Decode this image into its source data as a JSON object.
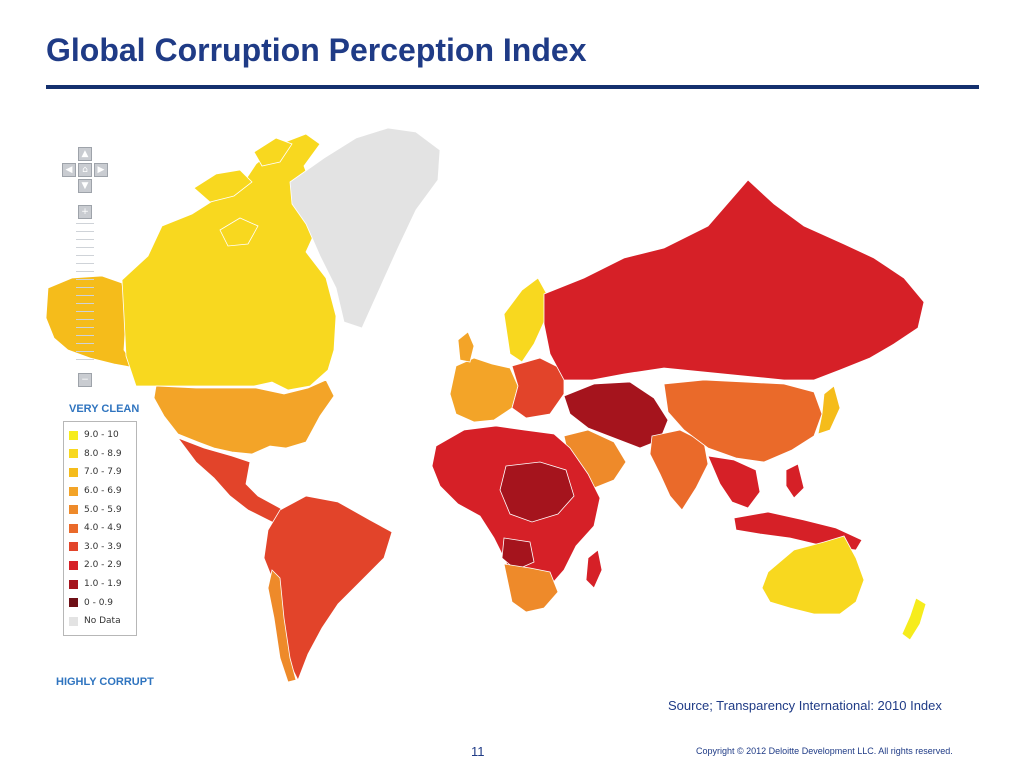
{
  "slide": {
    "title": "Global Corruption Perception Index",
    "source": "Source; Transparency International:  2010 Index",
    "page_number": "11",
    "copyright": "Copyright © 2012 Deloitte Development LLC. All rights reserved.",
    "title_color": "#1f3b86",
    "rule_color": "#14306e"
  },
  "map": {
    "controls": {
      "pan_up": "▲",
      "pan_left": "◀",
      "home": "⌂",
      "pan_right": "▶",
      "pan_down": "▼",
      "zoom_in": "+",
      "zoom_out": "−",
      "icons": [
        "pan-up-icon",
        "pan-left-icon",
        "home-icon",
        "pan-right-icon",
        "pan-down-icon",
        "zoom-in-icon",
        "zoom-out-icon"
      ]
    },
    "legend": {
      "top_label": "VERY CLEAN",
      "bottom_label": "HIGHLY CORRUPT",
      "items": [
        {
          "label": "9.0 - 10",
          "color": "#f6ec1c"
        },
        {
          "label": "8.0 - 8.9",
          "color": "#f8d81f"
        },
        {
          "label": "7.0 - 7.9",
          "color": "#f5bc1b"
        },
        {
          "label": "6.0 - 6.9",
          "color": "#f3a428"
        },
        {
          "label": "5.0 - 5.9",
          "color": "#ee8a2a"
        },
        {
          "label": "4.0 - 4.9",
          "color": "#ea6a2a"
        },
        {
          "label": "3.0 - 3.9",
          "color": "#e2442a"
        },
        {
          "label": "2.0 - 2.9",
          "color": "#d62027"
        },
        {
          "label": "1.0 - 1.9",
          "color": "#a5141d"
        },
        {
          "label": "0 - 0.9",
          "color": "#6e0f16"
        },
        {
          "label": "No Data",
          "color": "#e3e3e3"
        }
      ]
    },
    "regions": [
      {
        "id": "alaska",
        "color": "#f5bc1b"
      },
      {
        "id": "canada",
        "color": "#f8d81f"
      },
      {
        "id": "greenland",
        "color": "#e3e3e3"
      },
      {
        "id": "usa",
        "color": "#f3a428"
      },
      {
        "id": "mexico-central-america",
        "color": "#e2442a"
      },
      {
        "id": "south-america",
        "color": "#e2442a"
      },
      {
        "id": "chile",
        "color": "#ee8a2a"
      },
      {
        "id": "scandinavia",
        "color": "#f8d81f"
      },
      {
        "id": "western-europe",
        "color": "#f3a428"
      },
      {
        "id": "eastern-europe",
        "color": "#e2442a"
      },
      {
        "id": "russia",
        "color": "#d62027"
      },
      {
        "id": "middle-east",
        "color": "#a5141d"
      },
      {
        "id": "arabia",
        "color": "#ee8a2a"
      },
      {
        "id": "africa",
        "color": "#d62027"
      },
      {
        "id": "central-africa",
        "color": "#a5141d"
      },
      {
        "id": "southern-africa",
        "color": "#ee8a2a"
      },
      {
        "id": "india",
        "color": "#ea6a2a"
      },
      {
        "id": "china",
        "color": "#ea6a2a"
      },
      {
        "id": "southeast-asia",
        "color": "#d62027"
      },
      {
        "id": "indonesia",
        "color": "#d62027"
      },
      {
        "id": "japan",
        "color": "#f5bc1b"
      },
      {
        "id": "australia",
        "color": "#f8d81f"
      },
      {
        "id": "new-zealand",
        "color": "#f6ec1c"
      }
    ]
  }
}
